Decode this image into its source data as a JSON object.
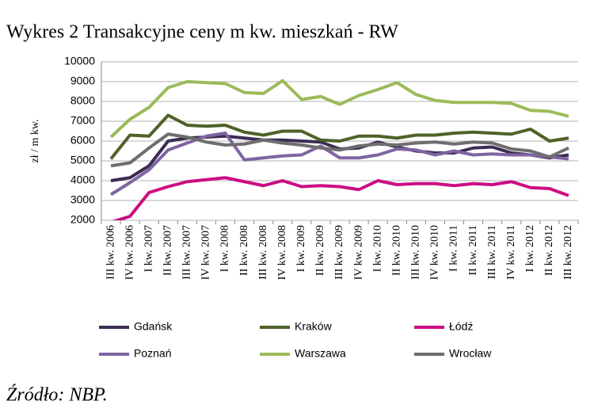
{
  "chart_data": {
    "type": "line",
    "title": "Wykres 2 Transakcyjne ceny m kw. mieszkań - RW",
    "y_label": "zł / m kw.",
    "source": "Źródło: NBP.",
    "categories": [
      "III kw. 2006",
      "IV kw. 2006",
      "I kw. 2007",
      "II kw. 2007",
      "III kw. 2007",
      "IV kw. 2007",
      "I kw. 2008",
      "II kw. 2008",
      "III kw. 2008",
      "IV kw. 2008",
      "I kw. 2009",
      "II kw. 2009",
      "III kw. 2009",
      "IV kw. 2009",
      "I kw. 2010",
      "II kw. 2010",
      "III kw. 2010",
      "IV kw. 2010",
      "I kw. 2011",
      "II kw. 2011",
      "III kw. 2011",
      "IV kw. 2011",
      "I kw. 2012",
      "II kw. 2012",
      "III kw. 2012"
    ],
    "ylim": [
      2000,
      10000
    ],
    "yticks": [
      2000,
      3000,
      4000,
      5000,
      6000,
      7000,
      8000,
      9000,
      10000
    ],
    "grid": true,
    "legend": "bottom",
    "series": [
      {
        "name": "Gdańsk",
        "color": "#3b2d52",
        "values": [
          4000,
          4150,
          4750,
          6000,
          6150,
          6200,
          6250,
          6150,
          6050,
          6050,
          6000,
          5950,
          5600,
          5650,
          5950,
          5700,
          5500,
          5400,
          5400,
          5650,
          5700,
          5400,
          5300,
          5150,
          5300
        ]
      },
      {
        "name": "Kraków",
        "color": "#4f6228",
        "values": [
          5100,
          6300,
          6250,
          7300,
          6800,
          6750,
          6800,
          6450,
          6300,
          6500,
          6500,
          6050,
          6000,
          6250,
          6250,
          6150,
          6300,
          6300,
          6400,
          6450,
          6400,
          6350,
          6600,
          6000,
          6150
        ]
      },
      {
        "name": "Łódź",
        "color": "#cc0d84",
        "values": [
          1900,
          2200,
          3400,
          3700,
          3950,
          4050,
          4150,
          3950,
          3750,
          4000,
          3700,
          3750,
          3700,
          3550,
          4000,
          3800,
          3850,
          3850,
          3750,
          3850,
          3800,
          3950,
          3650,
          3600,
          3250
        ]
      },
      {
        "name": "Poznań",
        "color": "#8064a2",
        "values": [
          3300,
          3900,
          4550,
          5550,
          5900,
          6250,
          6400,
          5050,
          5150,
          5250,
          5300,
          5750,
          5150,
          5150,
          5300,
          5600,
          5550,
          5300,
          5500,
          5300,
          5350,
          5300,
          5300,
          5200,
          5100
        ]
      },
      {
        "name": "Warszawa",
        "color": "#9bbb59",
        "values": [
          6200,
          7100,
          7700,
          8700,
          9000,
          8950,
          8900,
          8450,
          8400,
          9050,
          8100,
          8250,
          7850,
          8300,
          8600,
          8950,
          8350,
          8050,
          7950,
          7950,
          7950,
          7900,
          7550,
          7500,
          7250
        ]
      },
      {
        "name": "Wrocław",
        "color": "#6e6e6e",
        "values": [
          4750,
          4900,
          5650,
          6350,
          6200,
          5950,
          5800,
          5850,
          6050,
          5900,
          5800,
          5650,
          5550,
          5750,
          5850,
          5800,
          5900,
          5950,
          5850,
          5950,
          5900,
          5600,
          5500,
          5200,
          5650
        ]
      }
    ]
  }
}
